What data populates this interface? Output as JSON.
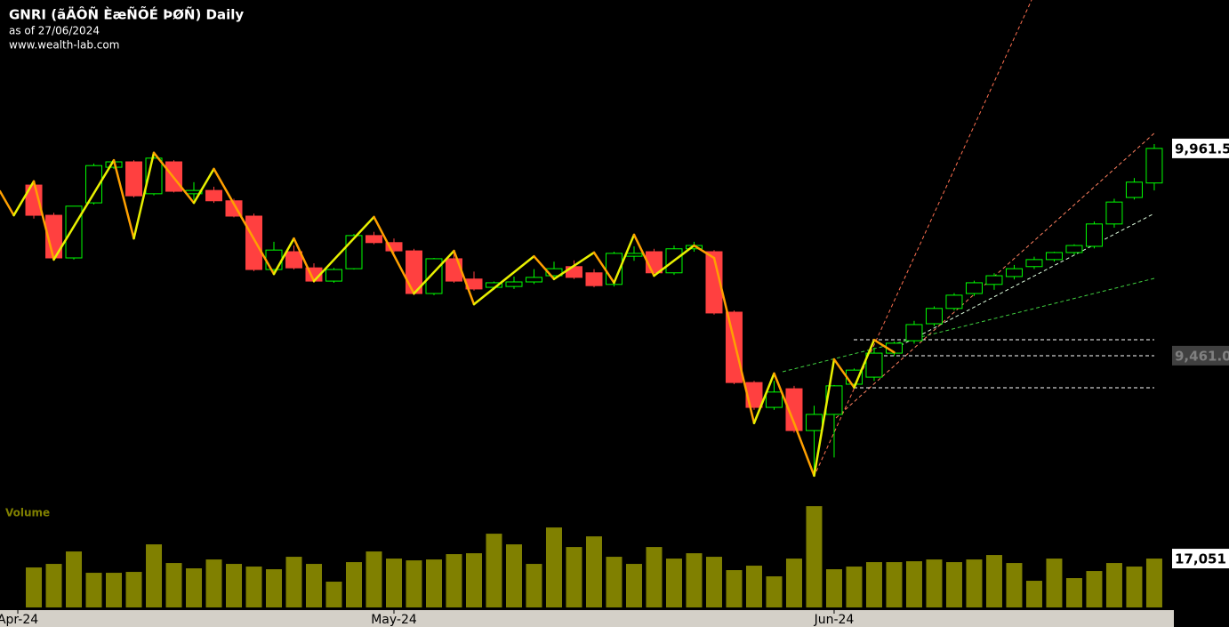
{
  "chart_data": {
    "type": "candlestick",
    "title": "GNRI (ãÄÔÑ ÈæÑÕÉ ÞØÑ) Daily",
    "subtitle": "as of 27/06/2024",
    "source": "www.wealth-lab.com",
    "open": [
      9873,
      9800,
      9697,
      9830,
      9916,
      9929,
      9852,
      9929,
      9852,
      9860,
      9835,
      9798,
      9669,
      9712,
      9673,
      9641,
      9671,
      9751,
      9734,
      9714,
      9611,
      9695,
      9646,
      9626,
      9628,
      9639,
      9654,
      9676,
      9661,
      9633,
      9701,
      9712,
      9661,
      9719,
      9712,
      9566,
      9396,
      9336,
      9381,
      9280,
      9319,
      9392,
      9409,
      9467,
      9497,
      9538,
      9575,
      9611,
      9633,
      9652,
      9676,
      9693,
      9710,
      9725,
      9779,
      9843,
      9878
    ],
    "high": [
      9885,
      9806,
      9822,
      9925,
      9933,
      9933,
      9942,
      9933,
      9880,
      9869,
      9840,
      9804,
      9736,
      9727,
      9684,
      9673,
      9755,
      9760,
      9744,
      9719,
      9697,
      9710,
      9664,
      9640,
      9652,
      9670,
      9688,
      9691,
      9670,
      9712,
      9725,
      9719,
      9727,
      9736,
      9716,
      9570,
      9400,
      9400,
      9388,
      9340,
      9390,
      9430,
      9480,
      9495,
      9545,
      9580,
      9612,
      9642,
      9660,
      9680,
      9700,
      9712,
      9730,
      9785,
      9840,
      9890,
      9972
    ],
    "low": [
      9792,
      9690,
      9693,
      9826,
      9912,
      9843,
      9848,
      9855,
      9837,
      9830,
      9795,
      9665,
      9665,
      9669,
      9637,
      9637,
      9669,
      9730,
      9710,
      9607,
      9607,
      9637,
      9618,
      9620,
      9622,
      9634,
      9650,
      9646,
      9626,
      9628,
      9690,
      9658,
      9656,
      9712,
      9560,
      9392,
      9330,
      9330,
      9275,
      9171,
      9215,
      9386,
      9400,
      9460,
      9490,
      9532,
      9570,
      9605,
      9620,
      9645,
      9670,
      9688,
      9705,
      9720,
      9770,
      9838,
      9860
    ],
    "close": [
      9800,
      9697,
      9822,
      9920,
      9929,
      9847,
      9938,
      9858,
      9860,
      9835,
      9798,
      9669,
      9716,
      9673,
      9641,
      9669,
      9751,
      9734,
      9714,
      9611,
      9695,
      9641,
      9622,
      9637,
      9639,
      9650,
      9671,
      9650,
      9630,
      9708,
      9708,
      9661,
      9719,
      9727,
      9564,
      9396,
      9336,
      9373,
      9280,
      9319,
      9388,
      9426,
      9467,
      9491,
      9536,
      9575,
      9607,
      9637,
      9654,
      9671,
      9693,
      9710,
      9727,
      9779,
      9832,
      9880,
      9961.5
    ],
    "up_color": "#00ff00",
    "down_color": "#ff4040",
    "xlim": [
      -1.69,
      56.98
    ],
    "ylim": [
      9117,
      10320
    ],
    "xticks": [
      {
        "value": -0.8,
        "label": "Apr-24"
      },
      {
        "value": 18,
        "label": "May-24"
      },
      {
        "value": 40,
        "label": "Jun-24"
      }
    ],
    "price_labels": [
      {
        "value": 9961.5,
        "label": "9,961.5",
        "style": "last"
      },
      {
        "value": 9461,
        "label": "9,461.0",
        "style": "level"
      }
    ],
    "zigzag": {
      "x": [
        -1.69,
        -1,
        0,
        1,
        4,
        5,
        6,
        8,
        9,
        12,
        13,
        14,
        17,
        19,
        21,
        22,
        25,
        26,
        28,
        29,
        30,
        31,
        33,
        34,
        36,
        37,
        38,
        39,
        40,
        41,
        42,
        43
      ],
      "values": [
        9858,
        9800,
        9882,
        9693,
        9933,
        9744,
        9951,
        9830,
        9912,
        9658,
        9744,
        9641,
        9796,
        9611,
        9714,
        9585,
        9701,
        9646,
        9710,
        9637,
        9753,
        9654,
        9727,
        9697,
        9298,
        9418,
        9298,
        9171,
        9452,
        9384,
        9499,
        9469
      ],
      "up_color": "#e8f000",
      "down_color": "#ffa000"
    },
    "volume": {
      "title": "Volume",
      "color": "#808000",
      "ylim": [
        0,
        36000
      ],
      "values": [
        13950,
        15190,
        19530,
        12090,
        12090,
        12400,
        22010,
        15500,
        13640,
        16740,
        15190,
        14260,
        13330,
        17670,
        15190,
        8990,
        15810,
        19530,
        17050,
        16430,
        16740,
        18600,
        18910,
        25730,
        22010,
        15190,
        27900,
        21080,
        24800,
        17670,
        15190,
        21080,
        17050,
        18910,
        17670,
        13020,
        14570,
        10850,
        17050,
        35340,
        13330,
        14260,
        15810,
        15810,
        16120,
        16740,
        15810,
        16740,
        18290,
        15500,
        9300,
        17050,
        10230,
        12710,
        15500,
        14260,
        17051
      ],
      "marker": {
        "value": 17051,
        "label": "17,051"
      }
    }
  }
}
